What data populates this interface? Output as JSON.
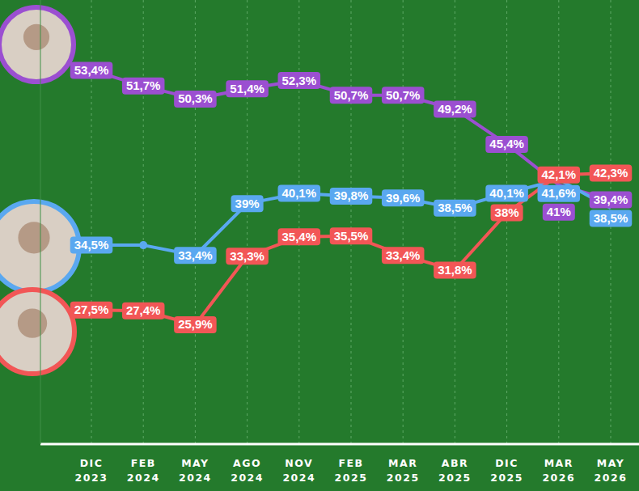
{
  "chart_data": {
    "type": "line",
    "categories": [
      "DIC 2023",
      "FEB 2024",
      "MAY 2024",
      "AGO 2024",
      "NOV 2024",
      "FEB 2025",
      "MAR 2025",
      "ABR 2025",
      "DIC 2025",
      "MAR 2026",
      "MAY 2026"
    ],
    "series": [
      {
        "color": "#9b4fd1",
        "values": [
          53.4,
          51.7,
          50.3,
          51.4,
          52.3,
          50.7,
          50.7,
          49.2,
          45.4,
          41,
          39.4
        ],
        "value_labels": [
          "53,4%",
          "51,7%",
          "50,3%",
          "51,4%",
          "52,3%",
          "50,7%",
          "50,7%",
          "49,2%",
          "45,4%",
          "41%",
          "39,4%"
        ]
      },
      {
        "color": "#5aa8f0",
        "values": [
          34.5,
          34.5,
          33.4,
          39,
          40.1,
          39.8,
          39.6,
          38.5,
          40.1,
          41.6,
          38.5
        ],
        "value_labels": [
          "34,5%",
          null,
          "33,4%",
          "39%",
          "40,1%",
          "39,8%",
          "39,6%",
          "38,5%",
          "40,1%",
          "41,6%",
          "38,5%"
        ]
      },
      {
        "color": "#f25656",
        "values": [
          27.5,
          27.4,
          25.9,
          33.3,
          35.4,
          35.5,
          33.4,
          31.8,
          38,
          42.1,
          42.3
        ],
        "value_labels": [
          "27,5%",
          "27,4%",
          "25,9%",
          "33,3%",
          "35,4%",
          "35,5%",
          "33,4%",
          "31,8%",
          "38%",
          "42,1%",
          "42,3%"
        ]
      }
    ],
    "ylim": [
      13,
      61
    ],
    "grid": true,
    "data_labels": true,
    "tick_labels": "x"
  }
}
